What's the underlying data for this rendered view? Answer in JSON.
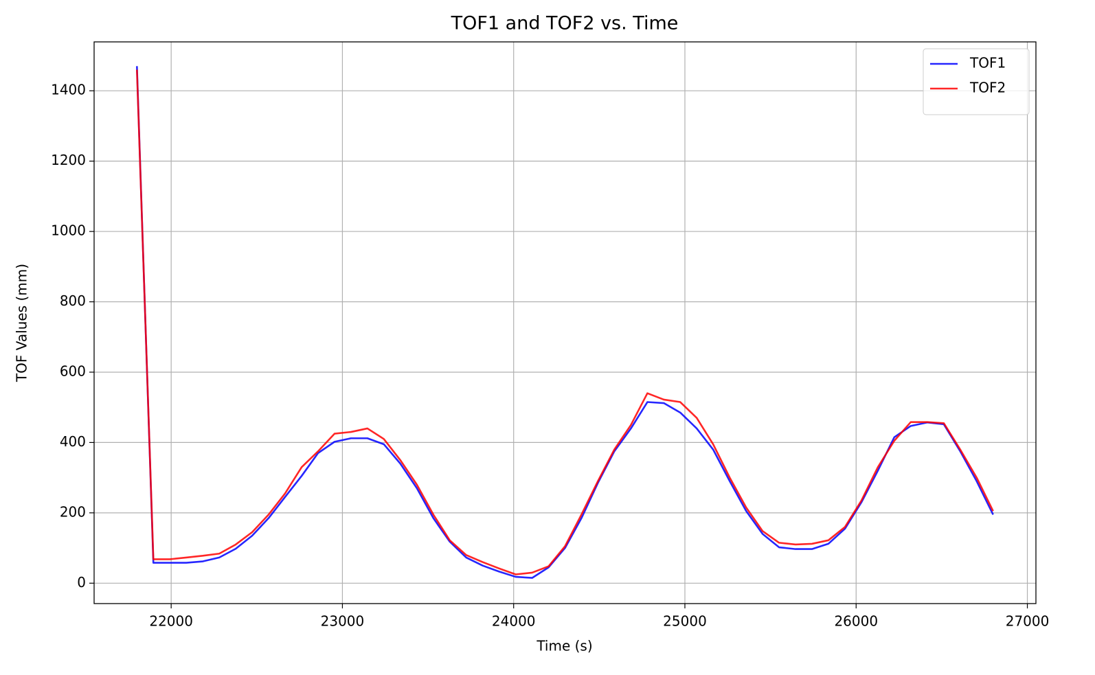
{
  "chart_data": {
    "type": "line",
    "title": "TOF1 and TOF2 vs. Time",
    "xlabel": "Time (s)",
    "ylabel": "TOF Values (mm)",
    "x": [
      21800,
      21896,
      21992,
      22088,
      22185,
      22281,
      22377,
      22473,
      22569,
      22665,
      22762,
      22858,
      22954,
      23050,
      23146,
      23242,
      23338,
      23435,
      23531,
      23627,
      23723,
      23819,
      23915,
      24012,
      24108,
      24204,
      24300,
      24396,
      24492,
      24588,
      24685,
      24781,
      24877,
      24973,
      25069,
      25165,
      25262,
      25358,
      25454,
      25550,
      25646,
      25742,
      25838,
      25935,
      26031,
      26127,
      26223,
      26319,
      26415,
      26512,
      26608,
      26704,
      26800
    ],
    "series": [
      {
        "name": "TOF1",
        "color": "#0000ff",
        "values": [
          1470,
          58,
          58,
          58,
          62,
          73,
          98,
          135,
          185,
          245,
          305,
          370,
          402,
          412,
          412,
          395,
          340,
          270,
          185,
          118,
          73,
          50,
          33,
          18,
          15,
          45,
          100,
          185,
          285,
          375,
          440,
          515,
          512,
          485,
          440,
          380,
          290,
          205,
          140,
          102,
          97,
          97,
          112,
          155,
          230,
          320,
          415,
          447,
          457,
          452,
          375,
          290,
          195
        ]
      },
      {
        "name": "TOF2",
        "color": "#ff0000",
        "values": [
          1460,
          68,
          68,
          73,
          78,
          84,
          110,
          145,
          195,
          255,
          330,
          375,
          425,
          430,
          440,
          410,
          350,
          280,
          195,
          122,
          80,
          60,
          42,
          25,
          30,
          48,
          105,
          195,
          290,
          380,
          450,
          540,
          522,
          515,
          470,
          395,
          300,
          215,
          148,
          115,
          110,
          112,
          122,
          160,
          235,
          330,
          405,
          458,
          458,
          455,
          380,
          300,
          205
        ]
      }
    ],
    "xlim": [
      21550,
      27050
    ],
    "ylim": [
      -58,
      1539
    ],
    "xticks": [
      22000,
      23000,
      24000,
      25000,
      26000,
      27000
    ],
    "yticks": [
      0,
      200,
      400,
      600,
      800,
      1000,
      1200,
      1400
    ],
    "grid": true,
    "legend": "upper right"
  }
}
